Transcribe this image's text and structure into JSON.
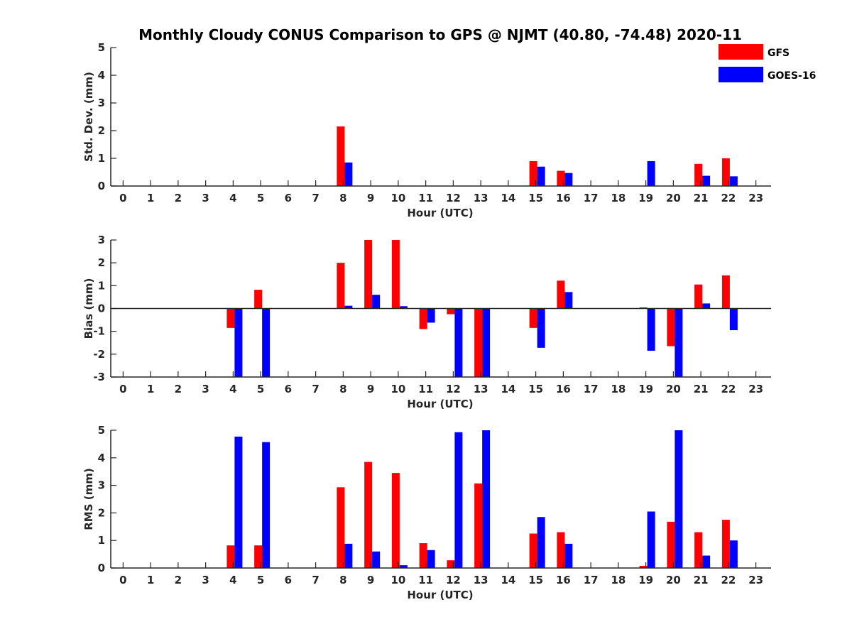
{
  "title": "Monthly Cloudy CONUS Comparison to GPS @ NJMT (40.80, -74.48) 2020-11",
  "legend": [
    {
      "name": "GFS",
      "color": "#ff0000"
    },
    {
      "name": "GOES-16",
      "color": "#0000ff"
    }
  ],
  "chart_data": [
    {
      "type": "bar",
      "ylabel": "Std. Dev. (mm)",
      "xlabel": "Hour (UTC)",
      "ylim": [
        0,
        5
      ],
      "yticks": [
        0,
        1,
        2,
        3,
        4,
        5
      ],
      "categories": [
        "0",
        "1",
        "2",
        "3",
        "4",
        "5",
        "6",
        "7",
        "8",
        "9",
        "10",
        "11",
        "12",
        "13",
        "14",
        "15",
        "16",
        "17",
        "18",
        "19",
        "20",
        "21",
        "22",
        "23"
      ],
      "series": [
        {
          "name": "GFS",
          "values": [
            0,
            0,
            0,
            0,
            0,
            0,
            0,
            0,
            2.15,
            0,
            0,
            0,
            0,
            0,
            0,
            0.9,
            0.55,
            0,
            0,
            0,
            0,
            0.8,
            1.0,
            0
          ]
        },
        {
          "name": "GOES-16",
          "values": [
            0,
            0,
            0,
            0,
            0,
            0,
            0,
            0,
            0.85,
            0,
            0,
            0,
            0,
            0,
            0,
            0.7,
            0.47,
            0,
            0,
            0.9,
            0,
            0.37,
            0.35,
            0
          ]
        }
      ]
    },
    {
      "type": "bar",
      "ylabel": "Bias (mm)",
      "xlabel": "Hour (UTC)",
      "ylim": [
        -3,
        3
      ],
      "yticks": [
        -3,
        -2,
        -1,
        0,
        1,
        2,
        3
      ],
      "categories": [
        "0",
        "1",
        "2",
        "3",
        "4",
        "5",
        "6",
        "7",
        "8",
        "9",
        "10",
        "11",
        "12",
        "13",
        "14",
        "15",
        "16",
        "17",
        "18",
        "19",
        "20",
        "21",
        "22",
        "23"
      ],
      "series": [
        {
          "name": "GFS",
          "values": [
            0,
            0,
            0,
            0,
            -0.85,
            0.82,
            0,
            0,
            2.0,
            3.0,
            3.0,
            -0.9,
            -0.25,
            -3.0,
            0,
            -0.85,
            1.22,
            0,
            0,
            0.05,
            -1.65,
            1.05,
            1.45,
            0
          ]
        },
        {
          "name": "GOES-16",
          "values": [
            0,
            0,
            0,
            0,
            -3.0,
            -3.0,
            0,
            0,
            0.12,
            0.6,
            0.1,
            -0.62,
            -3.0,
            -3.0,
            0,
            -1.72,
            0.72,
            0,
            0,
            -1.85,
            -3.0,
            0.22,
            -0.95,
            0
          ]
        }
      ]
    },
    {
      "type": "bar",
      "ylabel": "RMS (mm)",
      "xlabel": "Hour (UTC)",
      "ylim": [
        0,
        5
      ],
      "yticks": [
        0,
        1,
        2,
        3,
        4,
        5
      ],
      "categories": [
        "0",
        "1",
        "2",
        "3",
        "4",
        "5",
        "6",
        "7",
        "8",
        "9",
        "10",
        "11",
        "12",
        "13",
        "14",
        "15",
        "16",
        "17",
        "18",
        "19",
        "20",
        "21",
        "22",
        "23"
      ],
      "series": [
        {
          "name": "GFS",
          "values": [
            0,
            0,
            0,
            0,
            0.82,
            0.82,
            0,
            0,
            2.93,
            3.85,
            3.45,
            0.9,
            0.28,
            3.07,
            0,
            1.25,
            1.3,
            0,
            0,
            0.08,
            1.68,
            1.3,
            1.75,
            0
          ]
        },
        {
          "name": "GOES-16",
          "values": [
            0,
            0,
            0,
            0,
            4.77,
            4.57,
            0,
            0,
            0.88,
            0.6,
            0.1,
            0.65,
            4.93,
            5.0,
            0,
            1.85,
            0.88,
            0,
            0,
            2.05,
            5.0,
            0.45,
            1.0,
            0
          ]
        }
      ]
    }
  ]
}
